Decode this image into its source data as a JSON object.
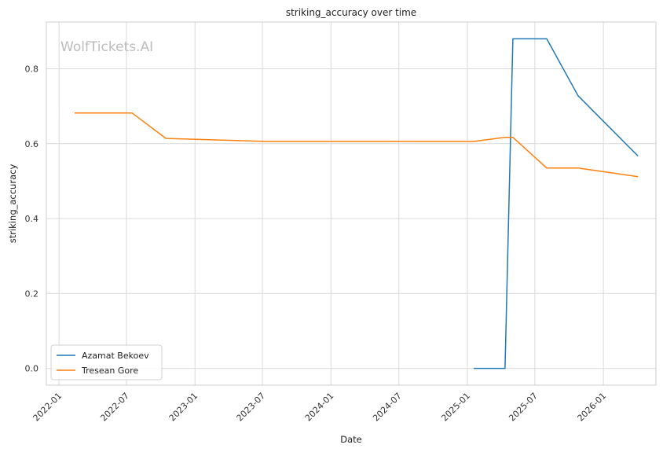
{
  "chart_data": {
    "type": "line",
    "title": "striking_accuracy over time",
    "xlabel": "Date",
    "ylabel": "striking_accuracy",
    "watermark": "WolfTickets.AI",
    "grid": true,
    "legend_position": "lower-left",
    "xlim": [
      "2021-11-28",
      "2026-05-22"
    ],
    "ylim": [
      -0.045,
      0.925
    ],
    "x_ticks": [
      "2022-01",
      "2022-07",
      "2023-01",
      "2023-07",
      "2024-01",
      "2024-07",
      "2025-01",
      "2025-07",
      "2026-01"
    ],
    "y_ticks": [
      "0.0",
      "0.2",
      "0.4",
      "0.6",
      "0.8"
    ],
    "series": [
      {
        "name": "Azamat Bekoev",
        "color": "#1f77b4",
        "points": [
          {
            "x": "2025-01-18",
            "y": 0.0
          },
          {
            "x": "2025-04-12",
            "y": 0.0
          },
          {
            "x": "2025-05-03",
            "y": 0.88
          },
          {
            "x": "2025-08-02",
            "y": 0.88
          },
          {
            "x": "2025-10-25",
            "y": 0.728
          },
          {
            "x": "2026-04-04",
            "y": 0.567
          }
        ]
      },
      {
        "name": "Tresean Gore",
        "color": "#ff7f0e",
        "points": [
          {
            "x": "2022-02-12",
            "y": 0.682
          },
          {
            "x": "2022-07-16",
            "y": 0.682
          },
          {
            "x": "2022-10-15",
            "y": 0.614
          },
          {
            "x": "2023-07-08",
            "y": 0.606
          },
          {
            "x": "2025-01-18",
            "y": 0.606
          },
          {
            "x": "2025-04-12",
            "y": 0.617
          },
          {
            "x": "2025-05-03",
            "y": 0.617
          },
          {
            "x": "2025-08-02",
            "y": 0.535
          },
          {
            "x": "2025-10-25",
            "y": 0.535
          },
          {
            "x": "2026-04-04",
            "y": 0.512
          }
        ]
      }
    ]
  }
}
